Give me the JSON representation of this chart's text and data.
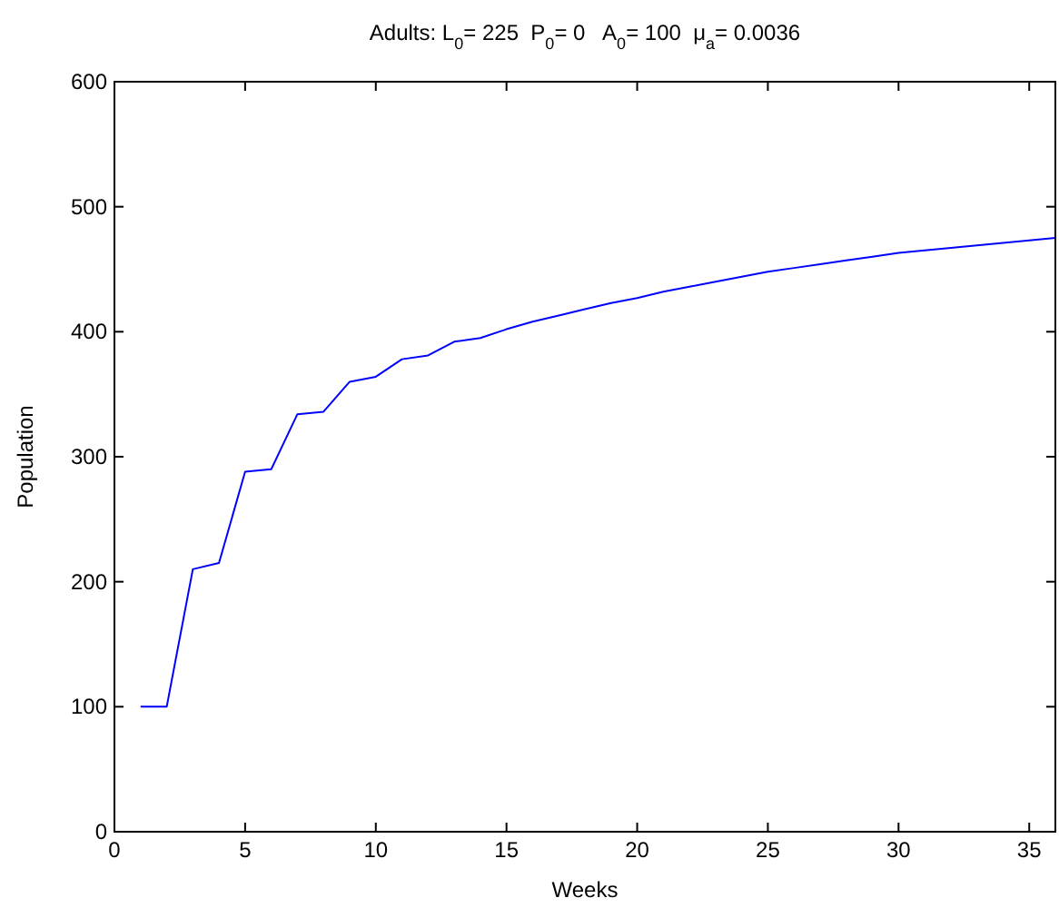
{
  "chart_data": {
    "type": "line",
    "title": "Adults: L$_{0}$= 225  P$_{0}$= 0   A$_{0}$= 100  μ$_{a}$= 0.0036",
    "xlabel": "Weeks",
    "ylabel": "Population",
    "x": [
      1,
      2,
      3,
      4,
      5,
      6,
      7,
      8,
      9,
      10,
      11,
      12,
      13,
      14,
      15,
      16,
      17,
      18,
      19,
      20,
      21,
      22,
      23,
      24,
      25,
      26,
      27,
      28,
      29,
      30,
      31,
      32,
      33,
      34,
      35,
      36
    ],
    "series": [
      {
        "color": "#0000ff",
        "values": [
          100,
          100,
          210,
          215,
          288,
          290,
          334,
          336,
          360,
          364,
          378,
          381,
          392,
          395,
          402,
          408,
          413,
          418,
          423,
          427,
          432,
          436,
          440,
          444,
          448,
          451,
          454,
          457,
          460,
          463,
          465,
          467,
          469,
          471,
          473,
          475
        ]
      }
    ],
    "xlim": [
      0,
      36
    ],
    "xticks": [
      0,
      5,
      10,
      15,
      20,
      25,
      30,
      35
    ],
    "ylim": [
      0,
      600
    ],
    "yticks": [
      0,
      100,
      200,
      300,
      400,
      500,
      600
    ],
    "grid": false,
    "marker": "none",
    "line_style": "solid"
  }
}
